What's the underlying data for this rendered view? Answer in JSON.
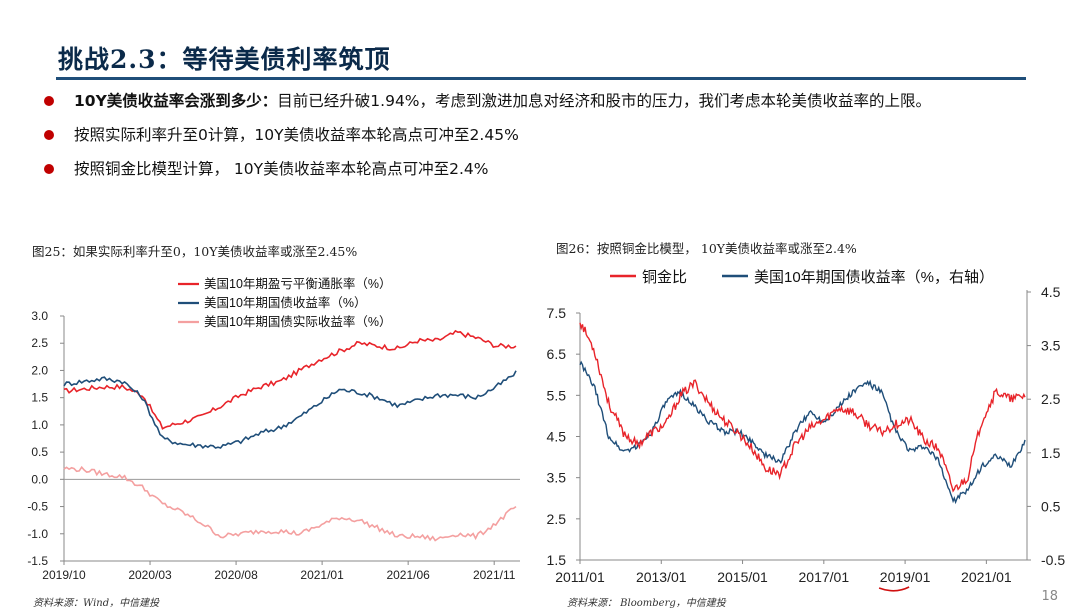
{
  "header": {
    "title": "挑战2.3：等待美债利率筑顶"
  },
  "bullets": [
    {
      "bold": "10Y美债收益率会涨到多少：",
      "text": "目前已经升破1.94%，考虑到激进加息对经济和股市的压力，我们考虑本轮美债收益率的上限。"
    },
    {
      "bold": "",
      "text": "按照实际利率升至0计算，10Y美债收益率本轮高点可冲至2.45%"
    },
    {
      "bold": "",
      "text": "按照铜金比模型计算， 10Y美债收益率本轮高点可冲至2.4%"
    }
  ],
  "figures": {
    "left_title": "图25：如果实际利率升至0，10Y美债收益率或涨至2.45%",
    "left_source": "资料来源：Wind，中信建投",
    "right_title": "图26：按照铜金比模型， 10Y美债收益率或涨至2.4%",
    "right_source": "资料来源： Bloomberg，中信建投"
  },
  "page_number": "18",
  "chart_data": [
    {
      "type": "line",
      "x_ticks": [
        "2019/10",
        "2020/03",
        "2020/08",
        "2021/01",
        "2021/06",
        "2021/11"
      ],
      "y_ticks": [
        "3.0",
        "2.5",
        "2.0",
        "1.5",
        "1.0",
        "0.5",
        "0.0",
        "-0.5",
        "-1.0",
        "-1.5"
      ],
      "ylim": [
        -1.5,
        3.0
      ],
      "legend_position": "top-center",
      "series": [
        {
          "name": "美国10年期盈亏平衡通胀率（%）",
          "color": "#e8242a",
          "values": [
            1.62,
            1.66,
            1.7,
            1.7,
            1.55,
            0.95,
            1.05,
            1.15,
            1.35,
            1.55,
            1.7,
            1.8,
            2.0,
            2.2,
            2.35,
            2.5,
            2.45,
            2.4,
            2.55,
            2.55,
            2.7,
            2.6,
            2.45,
            2.45
          ]
        },
        {
          "name": "美国10年期国债收益率（%）",
          "color": "#1f4e79",
          "values": [
            1.75,
            1.8,
            1.85,
            1.8,
            1.5,
            0.75,
            0.65,
            0.62,
            0.6,
            0.7,
            0.85,
            0.95,
            1.15,
            1.4,
            1.65,
            1.6,
            1.5,
            1.35,
            1.45,
            1.55,
            1.55,
            1.5,
            1.7,
            1.95
          ]
        },
        {
          "name": "美国10年期国债实际收益率（%）",
          "color": "#f4a0a0",
          "values": [
            0.2,
            0.18,
            0.1,
            0.05,
            -0.15,
            -0.45,
            -0.6,
            -0.8,
            -1.05,
            -1.0,
            -0.95,
            -0.95,
            -1.0,
            -0.85,
            -0.7,
            -0.75,
            -0.9,
            -1.05,
            -1.05,
            -1.1,
            -1.0,
            -1.05,
            -0.8,
            -0.5
          ]
        }
      ]
    },
    {
      "type": "line",
      "x_ticks": [
        "2011/01",
        "2013/01",
        "2015/01",
        "2017/01",
        "2019/01",
        "2021/01"
      ],
      "y_ticks_left": [
        "7.5",
        "6.5",
        "5.5",
        "4.5",
        "3.5",
        "2.5",
        "1.5"
      ],
      "y_ticks_right": [
        "4.5",
        "3.5",
        "2.5",
        "1.5",
        "0.5",
        "-0.5"
      ],
      "ylim_left": [
        1.5,
        7.5
      ],
      "ylim_right": [
        -0.5,
        4.5
      ],
      "legend_position": "top",
      "series": [
        {
          "name": "铜金比",
          "color": "#e8242a",
          "axis": "left",
          "values": [
            7.3,
            6.6,
            5.3,
            4.6,
            4.3,
            4.6,
            4.8,
            5.5,
            5.8,
            5.3,
            4.9,
            4.6,
            4.2,
            3.7,
            3.6,
            4.3,
            4.7,
            4.9,
            5.2,
            5.1,
            4.8,
            4.6,
            4.8,
            4.9,
            4.4,
            4.2,
            3.2,
            3.5,
            4.9,
            5.6,
            5.4,
            5.5
          ]
        },
        {
          "name": "美国10年期国债收益率（%，右轴）",
          "color": "#1f4e79",
          "axis": "right",
          "values": [
            3.5,
            3.0,
            2.0,
            1.7,
            1.8,
            2.1,
            2.7,
            2.9,
            2.6,
            2.3,
            2.1,
            2.1,
            1.9,
            1.6,
            1.5,
            2.1,
            2.5,
            2.3,
            2.6,
            2.9,
            3.1,
            2.9,
            2.1,
            1.7,
            1.8,
            1.5,
            0.7,
            0.9,
            1.4,
            1.6,
            1.4,
            1.9
          ]
        }
      ]
    }
  ]
}
